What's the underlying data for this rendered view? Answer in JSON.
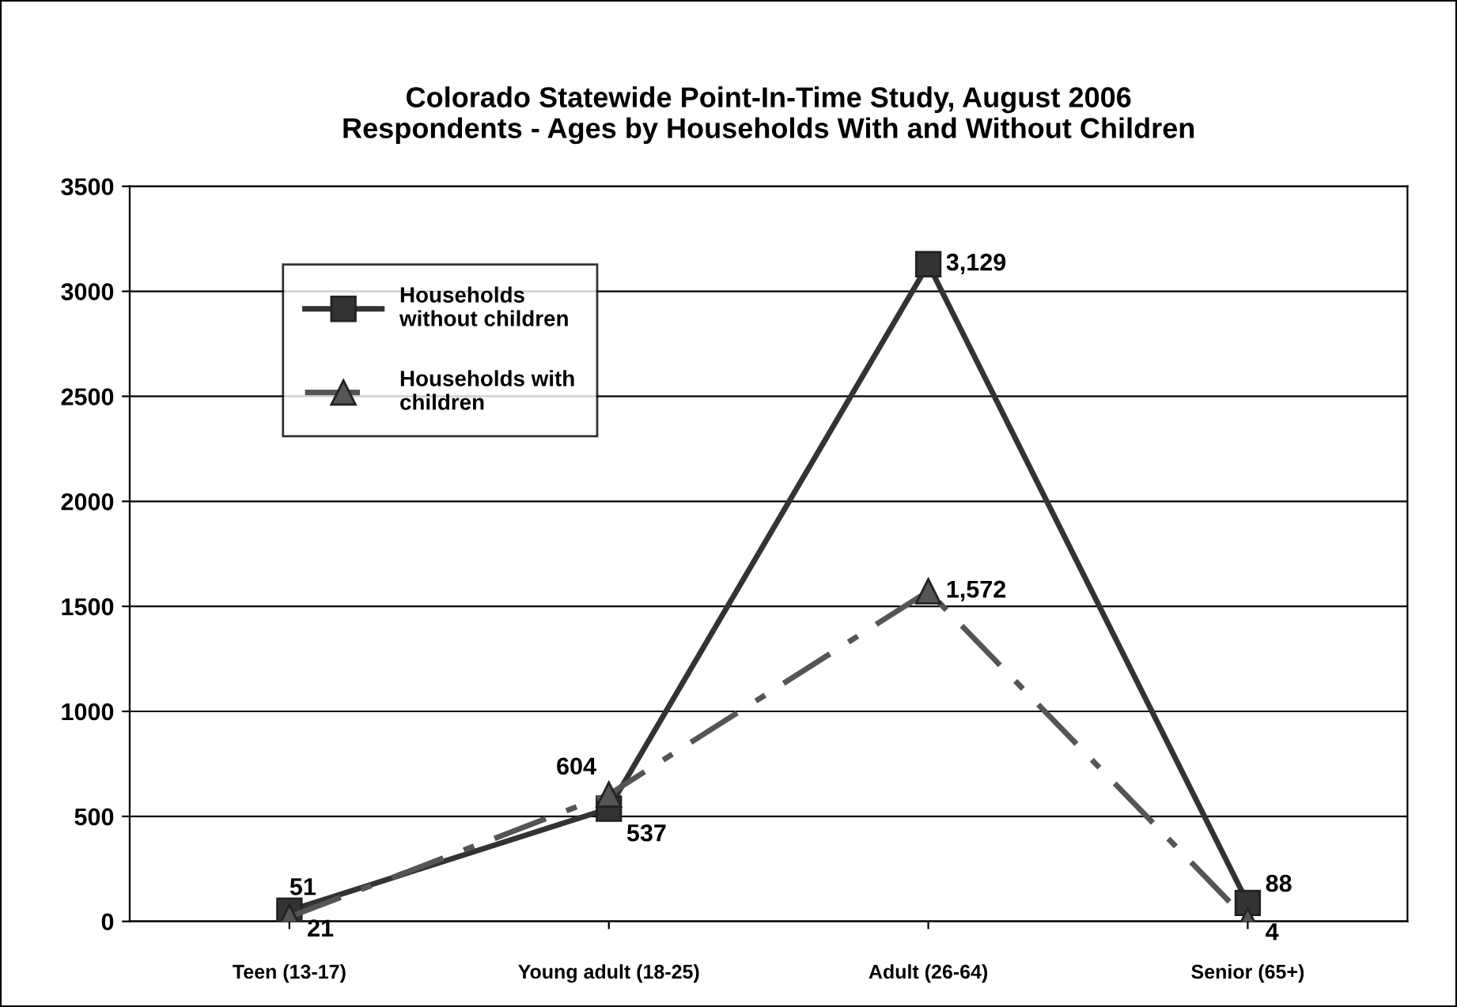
{
  "chart_data": {
    "type": "line",
    "title": "Colorado Statewide Point-In-Time Study, August 2006\nRespondents - Ages by Households With and Without Children",
    "categories": [
      "Teen (13-17)",
      "Young adult (18-25)",
      "Adult (26-64)",
      "Senior (65+)"
    ],
    "series": [
      {
        "name": "Households\nwithout children",
        "color": "#333333",
        "values": [
          51,
          537,
          3129,
          88
        ],
        "value_labels": [
          "51",
          "537",
          "3,129",
          "88"
        ],
        "marker": "square",
        "line_style": "solid"
      },
      {
        "name": "Households with\nchildren",
        "color": "#555555",
        "values": [
          21,
          604,
          1572,
          4
        ],
        "value_labels": [
          "21",
          "604",
          "1,572",
          "4"
        ],
        "marker": "triangle",
        "line_style": "dashdot"
      }
    ],
    "ylim": [
      0,
      3500
    ],
    "yticks": [
      0,
      500,
      1000,
      1500,
      2000,
      2500,
      3000,
      3500
    ],
    "grid": "y",
    "legend": "top left"
  }
}
